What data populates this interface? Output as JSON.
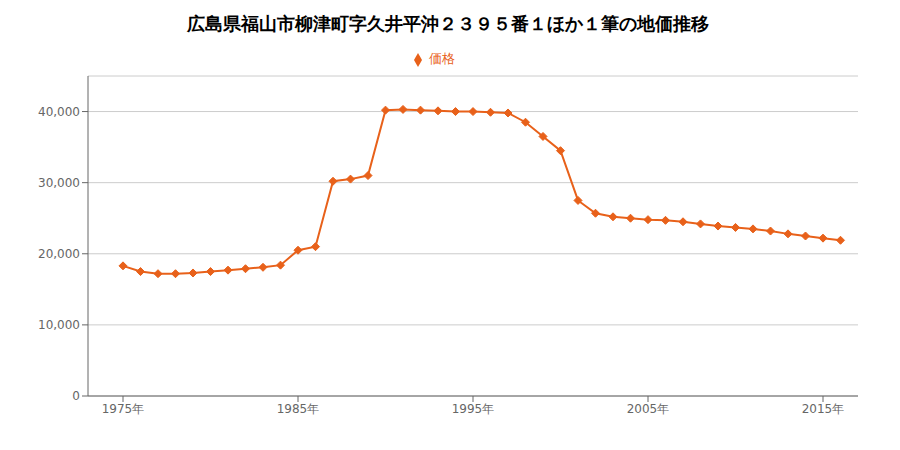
{
  "chart_data": {
    "type": "line",
    "title": "広島県福山市柳津町字久井平沖２３９５番１ほか１筆の地価推移",
    "x": [
      1975,
      1976,
      1977,
      1978,
      1979,
      1980,
      1981,
      1982,
      1983,
      1984,
      1985,
      1986,
      1987,
      1988,
      1989,
      1990,
      1991,
      1992,
      1993,
      1994,
      1995,
      1996,
      1997,
      1998,
      1999,
      2000,
      2001,
      2002,
      2003,
      2004,
      2005,
      2006,
      2007,
      2008,
      2009,
      2010,
      2011,
      2012,
      2013,
      2014,
      2015,
      2016
    ],
    "series": [
      {
        "name": "価格",
        "color": "#e8611a",
        "marker": "diamond",
        "values": [
          18300,
          17500,
          17200,
          17200,
          17300,
          17500,
          17700,
          17900,
          18100,
          18400,
          20500,
          21000,
          30200,
          30500,
          31000,
          40200,
          40300,
          40200,
          40100,
          40000,
          40000,
          39900,
          39800,
          38500,
          36500,
          34500,
          27500,
          25700,
          25200,
          25000,
          24800,
          24700,
          24500,
          24200,
          23900,
          23700,
          23500,
          23200,
          22800,
          22500,
          22200,
          21900
        ]
      }
    ],
    "xlim": [
      1973,
      2017
    ],
    "xticks": [
      {
        "value": 1975,
        "label": "1975年"
      },
      {
        "value": 1985,
        "label": "1985年"
      },
      {
        "value": 1995,
        "label": "1995年"
      },
      {
        "value": 2005,
        "label": "2005年"
      },
      {
        "value": 2015,
        "label": "2015年"
      }
    ],
    "ylim": [
      0,
      45000
    ],
    "yticks": [
      0,
      {
        "value": 10000,
        "label": "10,000"
      },
      {
        "value": 20000,
        "label": "20,000"
      },
      {
        "value": 30000,
        "label": "30,000"
      },
      {
        "value": 40000,
        "label": "40,000"
      }
    ],
    "grid": "y",
    "legend": "top"
  }
}
